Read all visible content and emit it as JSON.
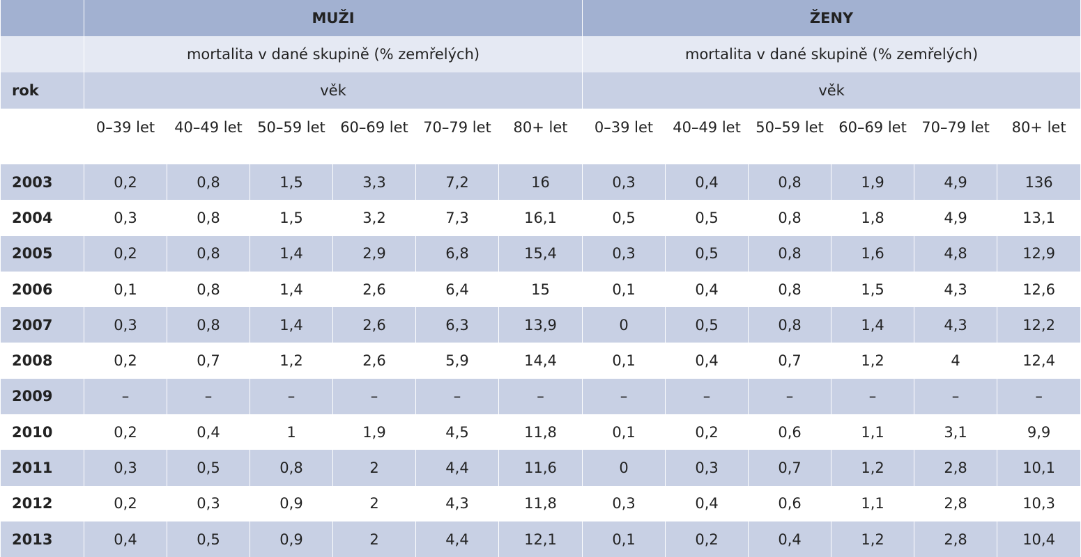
{
  "table": {
    "groups": [
      "MUŽI",
      "ŽENY"
    ],
    "subtitle": "mortalita v dané skupině (% zemřelých)",
    "row_header": "rok",
    "age_label": "věk",
    "age_groups": [
      "0–39 let",
      "40–49 let",
      "50–59 let",
      "60–69 let",
      "70–79 let",
      "80+ let"
    ],
    "rows": [
      {
        "year": "2003",
        "values": [
          "0,2",
          "0,8",
          "1,5",
          "3,3",
          "7,2",
          "16",
          "0,3",
          "0,4",
          "0,8",
          "1,9",
          "4,9",
          "136"
        ]
      },
      {
        "year": "2004",
        "values": [
          "0,3",
          "0,8",
          "1,5",
          "3,2",
          "7,3",
          "16,1",
          "0,5",
          "0,5",
          "0,8",
          "1,8",
          "4,9",
          "13,1"
        ]
      },
      {
        "year": "2005",
        "values": [
          "0,2",
          "0,8",
          "1,4",
          "2,9",
          "6,8",
          "15,4",
          "0,3",
          "0,5",
          "0,8",
          "1,6",
          "4,8",
          "12,9"
        ]
      },
      {
        "year": "2006",
        "values": [
          "0,1",
          "0,8",
          "1,4",
          "2,6",
          "6,4",
          "15",
          "0,1",
          "0,4",
          "0,8",
          "1,5",
          "4,3",
          "12,6"
        ]
      },
      {
        "year": "2007",
        "values": [
          "0,3",
          "0,8",
          "1,4",
          "2,6",
          "6,3",
          "13,9",
          "0",
          "0,5",
          "0,8",
          "1,4",
          "4,3",
          "12,2"
        ]
      },
      {
        "year": "2008",
        "values": [
          "0,2",
          "0,7",
          "1,2",
          "2,6",
          "5,9",
          "14,4",
          "0,1",
          "0,4",
          "0,7",
          "1,2",
          "4",
          "12,4"
        ]
      },
      {
        "year": "2009",
        "values": [
          "–",
          "–",
          "–",
          "–",
          "–",
          "–",
          "–",
          "–",
          "–",
          "–",
          "–",
          "–"
        ]
      },
      {
        "year": "2010",
        "values": [
          "0,2",
          "0,4",
          "1",
          "1,9",
          "4,5",
          "11,8",
          "0,1",
          "0,2",
          "0,6",
          "1,1",
          "3,1",
          "9,9"
        ]
      },
      {
        "year": "2011",
        "values": [
          "0,3",
          "0,5",
          "0,8",
          "2",
          "4,4",
          "11,6",
          "0",
          "0,3",
          "0,7",
          "1,2",
          "2,8",
          "10,1"
        ]
      },
      {
        "year": "2012",
        "values": [
          "0,2",
          "0,3",
          "0,9",
          "2",
          "4,3",
          "11,8",
          "0,3",
          "0,4",
          "0,6",
          "1,1",
          "2,8",
          "10,3"
        ]
      },
      {
        "year": "2013",
        "values": [
          "0,4",
          "0,5",
          "0,9",
          "2",
          "4,4",
          "12,1",
          "0,1",
          "0,2",
          "0,4",
          "1,2",
          "2,8",
          "10,4"
        ]
      }
    ]
  }
}
